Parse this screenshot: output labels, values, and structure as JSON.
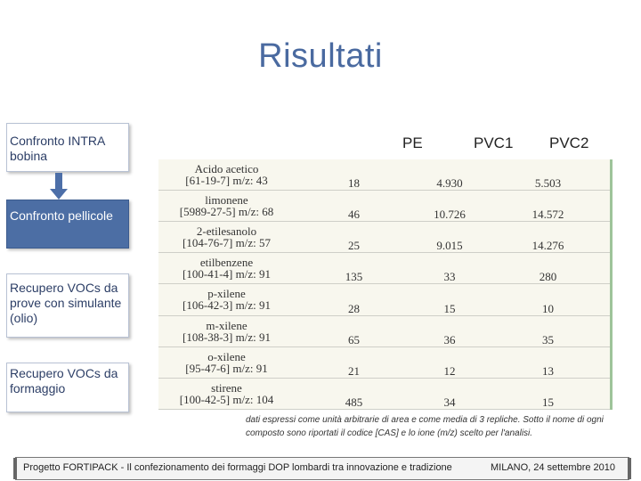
{
  "slide": {
    "title": "Risultati"
  },
  "flow": {
    "step1": "Confronto INTRA bobina",
    "step2": "Confronto pellicole",
    "step3": "Recupero VOCs da prove con simulante (olio)",
    "step4": "Recupero VOCs da formaggio"
  },
  "table": {
    "headers": [
      "PE",
      "PVC1",
      "PVC2"
    ],
    "rows": [
      {
        "name": "Acido acetico",
        "cas": "[61-19-7] m/z: 43",
        "pe": "18",
        "pvc1": "4.930",
        "pvc2": "5.503"
      },
      {
        "name": "limonene",
        "cas": "[5989-27-5] m/z: 68",
        "pe": "46",
        "pvc1": "10.726",
        "pvc2": "14.572"
      },
      {
        "name": "2-etilesanolo",
        "cas": "[104-76-7] m/z: 57",
        "pe": "25",
        "pvc1": "9.015",
        "pvc2": "14.276"
      },
      {
        "name": "etilbenzene",
        "cas": "[100-41-4] m/z: 91",
        "pe": "135",
        "pvc1": "33",
        "pvc2": "280"
      },
      {
        "name": "p-xilene",
        "cas": "[106-42-3] m/z: 91",
        "pe": "28",
        "pvc1": "15",
        "pvc2": "10"
      },
      {
        "name": "m-xilene",
        "cas": "[108-38-3] m/z: 91",
        "pe": "65",
        "pvc1": "36",
        "pvc2": "35"
      },
      {
        "name": "o-xilene",
        "cas": "[95-47-6] m/z: 91",
        "pe": "21",
        "pvc1": "12",
        "pvc2": "13"
      },
      {
        "name": "stirene",
        "cas": "[100-42-5] m/z: 104",
        "pe": "485",
        "pvc1": "34",
        "pvc2": "15"
      }
    ],
    "note": "dati espressi come unità arbitrarie di area e come media di 3 repliche. Sotto il nome di ogni composto sono riportati il codice [CAS] e lo ione (m/z) scelto per l'analisi."
  },
  "footer": {
    "project": "Progetto FORTIPACK - Il confezionamento dei formaggi DOP lombardi tra innovazione e tradizione",
    "date": "MILANO, 24 settembre 2010"
  },
  "colors": {
    "title": "#4a6aa0",
    "active_step": "#4c6ea4",
    "table_bg": "#f8f7ee"
  }
}
